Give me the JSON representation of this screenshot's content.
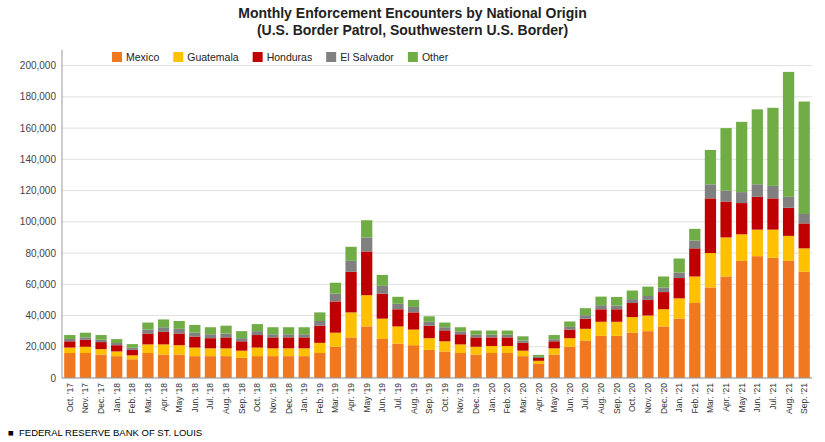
{
  "chart_data": {
    "type": "bar",
    "title": "Monthly Enforcement Encounters by National Origin\n(U.S. Border Patrol, Southwestern U.S. Border)",
    "categories": [
      "Oct. '17",
      "Nov. '17",
      "Dec. '17",
      "Jan. '18",
      "Feb. '18",
      "Mar. '18",
      "Apr. '18",
      "May '18",
      "Jun. '18",
      "Jul. '18",
      "Aug. '18",
      "Sep. '18",
      "Oct. '18",
      "Nov. '18",
      "Dec. '18",
      "Jan. '19",
      "Feb. '19",
      "Mar. '19",
      "Apr. '19",
      "May '19",
      "Jun. '19",
      "Jul. '19",
      "Aug. '19",
      "Sep. '19",
      "Oct. '19",
      "Nov. '19",
      "Dec. '19",
      "Jan. '20",
      "Feb. '20",
      "Mar. '20",
      "Apr. '20",
      "May '20",
      "Jun. '20",
      "Jul. '20",
      "Aug. '20",
      "Sep. '20",
      "Oct. '20",
      "Nov. '20",
      "Dec. '20",
      "Jan. '21",
      "Feb. '21",
      "Mar. '21",
      "Apr. '21",
      "May '21",
      "Jun. '21",
      "Jul. '21",
      "Aug. '21",
      "Sep. '21"
    ],
    "series": [
      {
        "name": "Mexico",
        "color": "#F07820",
        "values": [
          16000,
          16000,
          15000,
          14000,
          12000,
          16000,
          15000,
          15000,
          14000,
          14000,
          14000,
          13000,
          14000,
          14000,
          14000,
          14000,
          16000,
          20000,
          26000,
          33000,
          25000,
          22000,
          21000,
          18000,
          17000,
          16000,
          15000,
          16000,
          16000,
          14000,
          9000,
          15000,
          20000,
          24000,
          27000,
          27000,
          29000,
          30000,
          33000,
          38000,
          48000,
          58000,
          65000,
          75000,
          78000,
          77000,
          75000,
          68000
        ]
      },
      {
        "name": "Guatemala",
        "color": "#FFC000",
        "values": [
          3500,
          4000,
          3500,
          3000,
          2500,
          5500,
          6500,
          6000,
          5500,
          5000,
          5000,
          4500,
          5500,
          5000,
          5000,
          5000,
          6500,
          9000,
          16000,
          20000,
          13000,
          11000,
          10000,
          7500,
          6500,
          5500,
          5000,
          4500,
          4500,
          3500,
          2000,
          4000,
          5500,
          7500,
          9000,
          9000,
          10000,
          10000,
          11000,
          13000,
          17000,
          22000,
          25000,
          17000,
          17000,
          18000,
          16000,
          15000
        ]
      },
      {
        "name": "Honduras",
        "color": "#C00000",
        "values": [
          4000,
          4500,
          4500,
          4000,
          3500,
          7000,
          8000,
          7500,
          7000,
          6500,
          7000,
          6000,
          8000,
          7000,
          7000,
          7000,
          11000,
          20000,
          26000,
          28000,
          16000,
          11000,
          11000,
          8000,
          7000,
          6500,
          6000,
          5500,
          5500,
          5000,
          1800,
          4500,
          5500,
          6500,
          8000,
          8000,
          9000,
          10000,
          11000,
          13000,
          18000,
          35000,
          23000,
          20000,
          21000,
          20000,
          18000,
          16000
        ]
      },
      {
        "name": "El Salvador",
        "color": "#808080",
        "values": [
          1500,
          1500,
          1500,
          1400,
          1400,
          2500,
          3000,
          3000,
          2500,
          2500,
          2500,
          2000,
          2500,
          2000,
          2000,
          2000,
          3000,
          5000,
          7000,
          9000,
          5000,
          3500,
          3500,
          2500,
          2000,
          1800,
          1700,
          1700,
          1700,
          1500,
          700,
          1300,
          1700,
          2200,
          2600,
          2400,
          2500,
          2500,
          3000,
          3500,
          5000,
          9000,
          7000,
          7000,
          8000,
          8000,
          7000,
          6000
        ]
      },
      {
        "name": "Other",
        "color": "#70AD47",
        "values": [
          2500,
          3000,
          3000,
          2500,
          2300,
          4500,
          5000,
          5000,
          5000,
          4500,
          5000,
          4500,
          4500,
          4500,
          4500,
          4500,
          5500,
          7000,
          9000,
          11000,
          7000,
          4500,
          4500,
          3500,
          3000,
          2700,
          2700,
          2700,
          2700,
          2700,
          1300,
          2700,
          3500,
          4500,
          5500,
          5500,
          5500,
          6000,
          7000,
          9000,
          7500,
          22000,
          40000,
          45000,
          48000,
          50000,
          80000,
          72000
        ]
      }
    ],
    "stacked": true,
    "ylim": [
      0,
      210000
    ],
    "yticks": [
      0,
      {
        "value": 20000,
        "label": "20,000"
      },
      {
        "value": 40000,
        "label": "40,000"
      },
      {
        "value": 60000,
        "label": "60,000"
      },
      {
        "value": 80000,
        "label": "80,000"
      },
      {
        "value": 100000,
        "label": "100,000"
      },
      {
        "value": 120000,
        "label": "120,000"
      },
      {
        "value": 140000,
        "label": "140,000"
      },
      {
        "value": 160000,
        "label": "160,000"
      },
      {
        "value": 180000,
        "label": "180,000"
      },
      {
        "value": 200000,
        "label": "200,000"
      }
    ],
    "grid": true,
    "legend": "upper left",
    "annotations": [
      "■  FEDERAL RESERVE BANK OF ST. LOUIS"
    ]
  }
}
